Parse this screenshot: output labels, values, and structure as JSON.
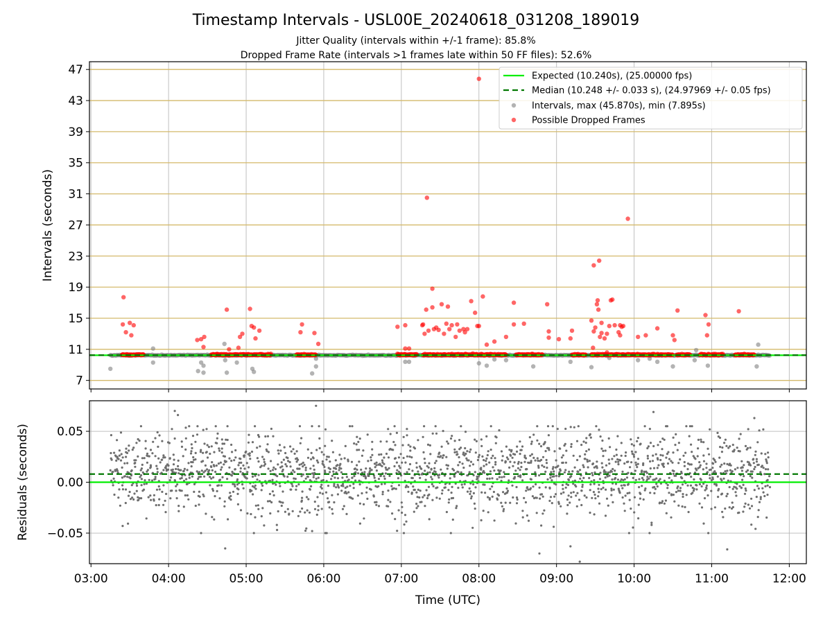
{
  "chart_data": [
    {
      "type": "scatter",
      "title": "Timestamp Intervals - USL00E_20240618_031208_189019",
      "subtitle_lines": [
        "Jitter Quality (intervals within +/-1 frame): 85.8%",
        "Dropped Frame Rate (intervals >1 frames late within 50 FF files): 52.6%"
      ],
      "ylabel": "Intervals (seconds)",
      "xlim_hours": [
        2.98,
        12.22
      ],
      "ylim": [
        5.9,
        48.0
      ],
      "yticks": [
        7,
        11,
        15,
        19,
        23,
        27,
        31,
        35,
        39,
        43,
        47
      ],
      "ytick_labels": [
        "7",
        "11",
        "15",
        "19",
        "23",
        "27",
        "31",
        "35",
        "39",
        "43",
        "47"
      ],
      "horizontal_gridlines_color": "#d4b96a",
      "expected_value": 10.24,
      "median_value": 10.248,
      "legend": {
        "placement": "top-right",
        "entries": [
          "Expected (10.240s), (25.00000 fps)",
          "Median (10.248 +/- 0.033 s), (24.97969 +/- 0.05 fps)",
          "Intervals, max (45.870s), min (7.895s)",
          "Possible Dropped Frames"
        ]
      },
      "colors": {
        "expected": "#00ee00",
        "median": "#007700",
        "intervals": "#808080",
        "dropped": "#ff0000"
      },
      "series_intervals": {
        "x_range_hours": [
          3.25,
          11.75
        ],
        "baseline": 10.24,
        "outliers": [
          [
            3.25,
            8.5
          ],
          [
            3.8,
            9.3
          ],
          [
            3.8,
            11.1
          ],
          [
            4.38,
            8.2
          ],
          [
            4.45,
            8.0
          ],
          [
            4.42,
            9.3
          ],
          [
            4.45,
            8.9
          ],
          [
            4.72,
            11.7
          ],
          [
            4.75,
            8.0
          ],
          [
            4.73,
            9.6
          ],
          [
            4.88,
            9.3
          ],
          [
            5.08,
            8.5
          ],
          [
            5.1,
            8.1
          ],
          [
            5.85,
            7.9
          ],
          [
            5.9,
            8.8
          ],
          [
            5.9,
            9.8
          ],
          [
            7.05,
            9.4
          ],
          [
            7.1,
            9.4
          ],
          [
            8.0,
            9.2
          ],
          [
            8.1,
            8.9
          ],
          [
            8.2,
            9.7
          ],
          [
            8.35,
            9.6
          ],
          [
            8.7,
            8.8
          ],
          [
            9.18,
            9.4
          ],
          [
            9.45,
            8.7
          ],
          [
            9.68,
            9.9
          ],
          [
            10.05,
            9.6
          ],
          [
            10.2,
            9.8
          ],
          [
            10.3,
            9.4
          ],
          [
            10.5,
            8.8
          ],
          [
            10.78,
            9.6
          ],
          [
            10.8,
            10.9
          ],
          [
            10.95,
            8.9
          ],
          [
            11.58,
            8.8
          ],
          [
            11.6,
            11.6
          ]
        ]
      },
      "series_dropped": {
        "dense_segments": [
          [
            3.4,
            3.68
          ],
          [
            4.55,
            5.32
          ],
          [
            5.65,
            5.9
          ],
          [
            6.95,
            7.2
          ],
          [
            7.28,
            8.35
          ],
          [
            8.48,
            8.82
          ],
          [
            9.2,
            9.38
          ],
          [
            9.45,
            10.5
          ],
          [
            10.55,
            10.72
          ],
          [
            10.85,
            11.15
          ],
          [
            11.3,
            11.55
          ]
        ],
        "points": [
          [
            3.42,
            17.7
          ],
          [
            3.41,
            14.2
          ],
          [
            3.45,
            13.2
          ],
          [
            3.5,
            14.4
          ],
          [
            3.55,
            14.1
          ],
          [
            3.52,
            12.8
          ],
          [
            4.37,
            12.2
          ],
          [
            4.42,
            12.3
          ],
          [
            4.46,
            12.6
          ],
          [
            4.45,
            11.3
          ],
          [
            4.75,
            16.1
          ],
          [
            4.78,
            11.0
          ],
          [
            4.9,
            11.2
          ],
          [
            4.92,
            12.6
          ],
          [
            4.95,
            13.0
          ],
          [
            5.05,
            16.2
          ],
          [
            5.07,
            14.0
          ],
          [
            5.1,
            13.8
          ],
          [
            5.12,
            12.4
          ],
          [
            5.17,
            13.4
          ],
          [
            5.72,
            14.2
          ],
          [
            5.7,
            13.2
          ],
          [
            5.88,
            13.1
          ],
          [
            5.93,
            11.7
          ],
          [
            6.95,
            13.9
          ],
          [
            7.05,
            11.1
          ],
          [
            7.1,
            11.1
          ],
          [
            7.05,
            14.1
          ],
          [
            7.27,
            14.1
          ],
          [
            7.28,
            14.2
          ],
          [
            7.3,
            13.0
          ],
          [
            7.32,
            16.1
          ],
          [
            7.33,
            30.5
          ],
          [
            7.35,
            13.4
          ],
          [
            7.4,
            16.4
          ],
          [
            7.4,
            18.8
          ],
          [
            7.42,
            13.6
          ],
          [
            7.45,
            13.8
          ],
          [
            7.48,
            13.5
          ],
          [
            7.52,
            16.8
          ],
          [
            7.55,
            13.0
          ],
          [
            7.58,
            14.3
          ],
          [
            7.6,
            16.5
          ],
          [
            7.62,
            13.6
          ],
          [
            7.65,
            14.1
          ],
          [
            7.7,
            12.6
          ],
          [
            7.72,
            14.2
          ],
          [
            7.75,
            13.4
          ],
          [
            7.8,
            13.6
          ],
          [
            7.82,
            13.2
          ],
          [
            7.85,
            13.6
          ],
          [
            7.9,
            17.2
          ],
          [
            7.95,
            15.7
          ],
          [
            7.98,
            14.0
          ],
          [
            8.0,
            14.0
          ],
          [
            8.0,
            45.8
          ],
          [
            8.05,
            17.8
          ],
          [
            8.1,
            11.6
          ],
          [
            8.2,
            12.0
          ],
          [
            8.35,
            12.6
          ],
          [
            8.45,
            17.0
          ],
          [
            8.45,
            14.2
          ],
          [
            8.58,
            14.3
          ],
          [
            8.88,
            16.8
          ],
          [
            8.9,
            12.5
          ],
          [
            8.9,
            13.3
          ],
          [
            9.03,
            12.3
          ],
          [
            9.18,
            12.4
          ],
          [
            9.2,
            13.4
          ],
          [
            9.45,
            14.7
          ],
          [
            9.47,
            11.2
          ],
          [
            9.48,
            13.3
          ],
          [
            9.48,
            21.8
          ],
          [
            9.5,
            13.8
          ],
          [
            9.52,
            16.8
          ],
          [
            9.53,
            17.3
          ],
          [
            9.54,
            16.1
          ],
          [
            9.55,
            22.4
          ],
          [
            9.56,
            12.6
          ],
          [
            9.58,
            14.4
          ],
          [
            9.58,
            13.1
          ],
          [
            9.62,
            12.4
          ],
          [
            9.65,
            13.0
          ],
          [
            9.65,
            10.6
          ],
          [
            9.68,
            14.0
          ],
          [
            9.7,
            17.3
          ],
          [
            9.72,
            17.4
          ],
          [
            9.75,
            14.1
          ],
          [
            9.8,
            13.2
          ],
          [
            9.82,
            14.1
          ],
          [
            9.82,
            12.8
          ],
          [
            9.84,
            13.9
          ],
          [
            9.86,
            14.0
          ],
          [
            9.92,
            27.8
          ],
          [
            10.05,
            12.6
          ],
          [
            10.15,
            12.8
          ],
          [
            10.3,
            13.7
          ],
          [
            10.5,
            12.8
          ],
          [
            10.52,
            12.2
          ],
          [
            10.56,
            16.0
          ],
          [
            10.92,
            15.4
          ],
          [
            10.94,
            12.8
          ],
          [
            10.96,
            14.2
          ],
          [
            11.35,
            15.9
          ]
        ]
      }
    },
    {
      "type": "scatter",
      "xlabel": "Time (UTC)",
      "ylabel": "Residuals (seconds)",
      "xlim_hours": [
        2.98,
        12.22
      ],
      "ylim": [
        -0.08,
        0.08
      ],
      "yticks": [
        -0.05,
        0.0,
        0.05
      ],
      "ytick_labels": [
        "−0.05",
        "0.00",
        "0.05"
      ],
      "xticks_hours": [
        3,
        4,
        5,
        6,
        7,
        8,
        9,
        10,
        11,
        12
      ],
      "xtick_labels": [
        "03:00",
        "04:00",
        "05:00",
        "06:00",
        "07:00",
        "08:00",
        "09:00",
        "10:00",
        "11:00",
        "12:00"
      ],
      "zero_line": 0.0,
      "median_offset": 0.008,
      "residual_series": {
        "x_range_hours": [
          3.25,
          11.75
        ],
        "typical_spread": 0.045,
        "notable_points": [
          [
            4.08,
            0.07
          ],
          [
            4.12,
            0.066
          ],
          [
            4.73,
            -0.065
          ],
          [
            5.9,
            0.075
          ],
          [
            6.02,
            -0.05
          ],
          [
            5.85,
            -0.048
          ],
          [
            8.78,
            -0.07
          ],
          [
            9.3,
            -0.078
          ],
          [
            9.18,
            -0.063
          ],
          [
            10.25,
            0.069
          ],
          [
            11.2,
            -0.066
          ],
          [
            11.55,
            0.063
          ]
        ]
      }
    }
  ]
}
